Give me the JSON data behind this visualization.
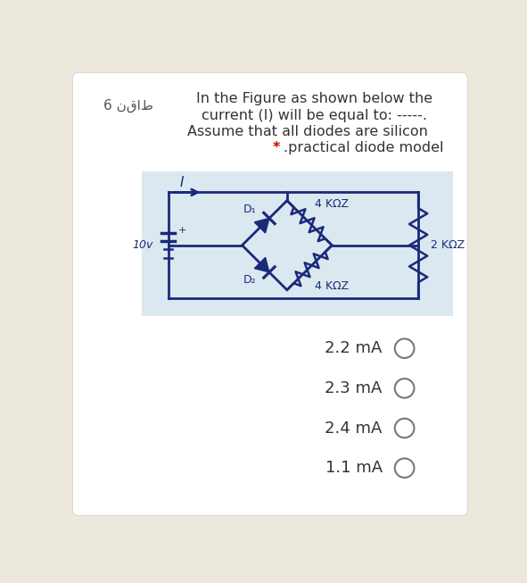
{
  "bg_color": "#ede8dc",
  "card_bg": "#ffffff",
  "text_color": "#333333",
  "circuit_bg": "#dce8f0",
  "arabic_label": "6 نقاط",
  "title_line1": "In the Figure as shown below the",
  "title_line2": "current (I) will be equal to: -----.",
  "title_line3": "Assume that all diodes are silicon",
  "title_line4": ".practical diode model",
  "choices": [
    "2.2 mA",
    "2.3 mA",
    "2.4 mA",
    "1.1 mA"
  ],
  "voltage_label": "10v",
  "current_label": "I",
  "d1_label": "D₁",
  "d2_label": "D₂",
  "r1_label": "4 KΩZ",
  "r2_label": "4 KΩZ",
  "r3_label": "2 KΩZ",
  "star_color": "#cc0000",
  "circuit_line_color": "#1a2a7a",
  "text_dark": "#1a2a7a"
}
